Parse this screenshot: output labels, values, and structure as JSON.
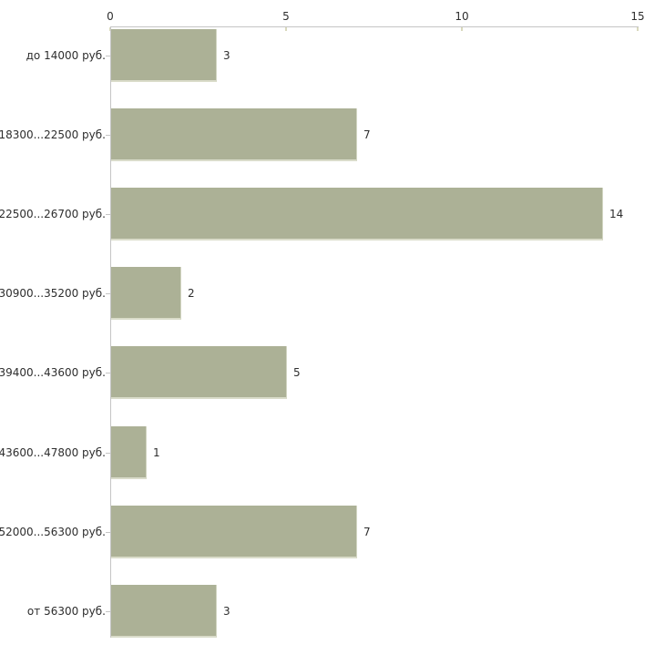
{
  "chart_data": {
    "type": "bar",
    "orientation": "horizontal",
    "title": "",
    "xlabel": "",
    "ylabel": "",
    "categories": [
      "до 14000 руб.",
      "18300...22500 руб.",
      "22500...26700 руб.",
      "30900...35200 руб.",
      "39400...43600 руб.",
      "43600...47800 руб.",
      "52000...56300 руб.",
      "от 56300 руб."
    ],
    "values": [
      3,
      7,
      14,
      2,
      5,
      1,
      7,
      3
    ],
    "value_labels": [
      "3",
      "7",
      "14",
      "2",
      "5",
      "1",
      "7",
      "3"
    ],
    "xlim": [
      0,
      15
    ],
    "x_ticks": [
      0,
      5,
      10,
      15
    ],
    "x_tick_labels": [
      "0",
      "5",
      "10",
      "15"
    ],
    "grid": false,
    "legend": "none",
    "colors": {
      "bar_fill": "#acb196",
      "bar_edge_right": "#d2d5c2",
      "bar_edge_bottom": "#dadcca",
      "axis_line": "#c5c5c5",
      "axis_tick": "#d9d9bd",
      "text": "#2e2e2e",
      "background": "#ffffff"
    }
  }
}
